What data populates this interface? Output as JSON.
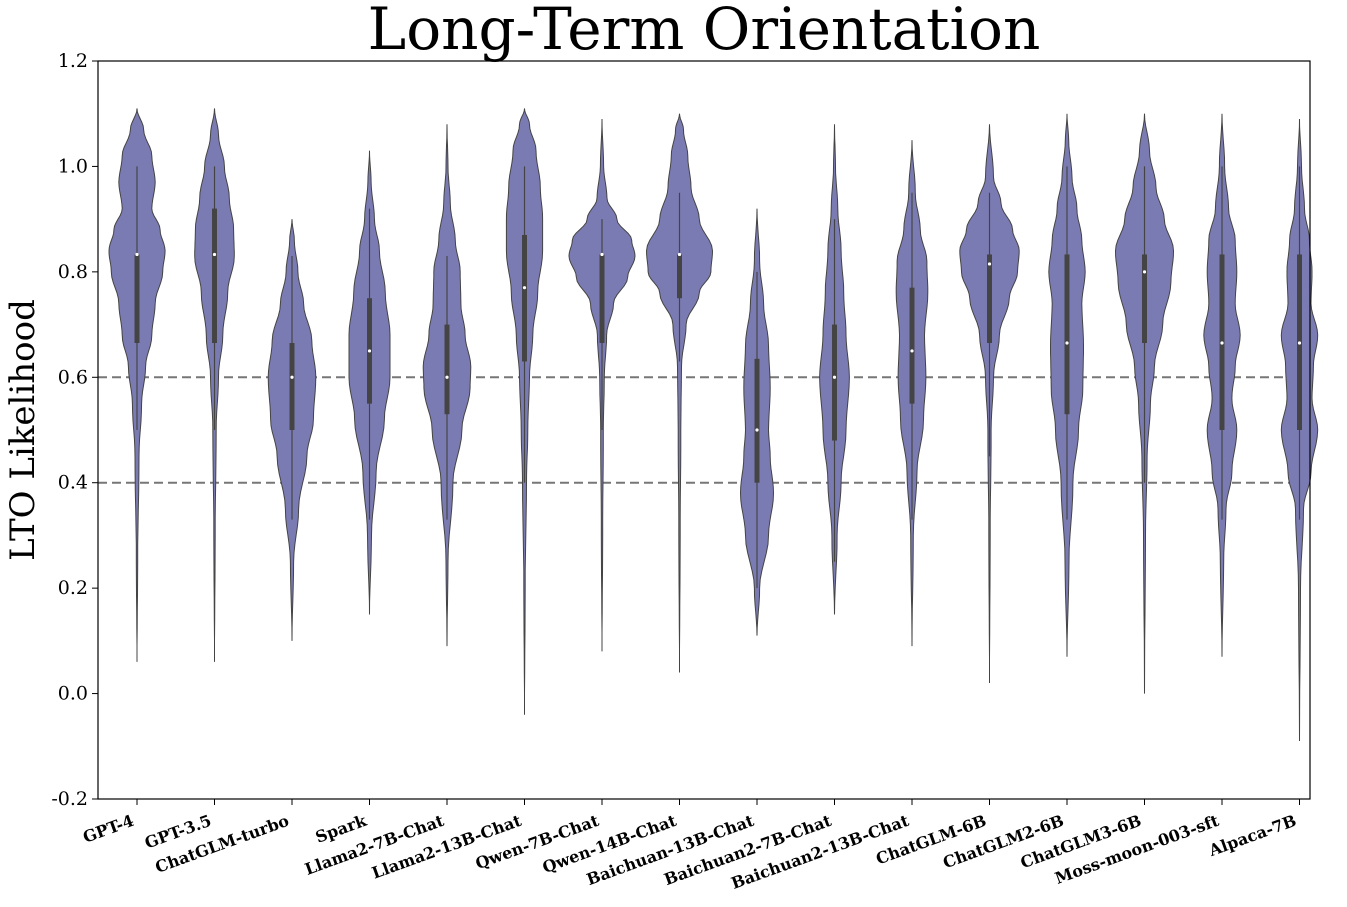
{
  "chart_data": {
    "type": "violin",
    "title": "Long-Term Orientation",
    "ylabel": "LTO Likelihood",
    "xlabel": "",
    "ylim": [
      -0.2,
      1.2
    ],
    "yticks": [
      "-0.2",
      "0.0",
      "0.2",
      "0.4",
      "0.6",
      "0.8",
      "1.0",
      "1.2"
    ],
    "reference_lines": [
      0.4,
      0.6
    ],
    "grid": false,
    "violin_color": "#7b7bb3",
    "edge_color": "#444444",
    "reference_line_color": "#777777",
    "categories": [
      "GPT-4",
      "GPT-3.5",
      "ChatGLM-turbo",
      "Spark",
      "Llama2-7B-Chat",
      "Llama2-13B-Chat",
      "Qwen-7B-Chat",
      "Qwen-14B-Chat",
      "Baichuan-13B-Chat",
      "Baichuan2-7B-Chat",
      "Baichuan2-13B-Chat",
      "ChatGLM-6B",
      "ChatGLM2-6B",
      "ChatGLM3-6B",
      "Moss-moon-003-sft",
      "Alpaca-7B"
    ],
    "series": [
      {
        "category": "GPT-4",
        "min": 0.06,
        "max": 1.11,
        "q1": 0.665,
        "median": 0.833,
        "q3": 0.833,
        "whisker_low": 0.5,
        "whisker_high": 1.0,
        "density_profile": [
          [
            0.06,
            0.0
          ],
          [
            0.25,
            0.02
          ],
          [
            0.45,
            0.06
          ],
          [
            0.55,
            0.14
          ],
          [
            0.62,
            0.26
          ],
          [
            0.68,
            0.45
          ],
          [
            0.74,
            0.55
          ],
          [
            0.8,
            0.78
          ],
          [
            0.84,
            0.85
          ],
          [
            0.88,
            0.7
          ],
          [
            0.92,
            0.45
          ],
          [
            0.97,
            0.55
          ],
          [
            1.02,
            0.45
          ],
          [
            1.07,
            0.2
          ],
          [
            1.11,
            0.0
          ]
        ]
      },
      {
        "category": "GPT-3.5",
        "min": 0.06,
        "max": 1.11,
        "q1": 0.665,
        "median": 0.833,
        "q3": 0.92,
        "whisker_low": 0.5,
        "whisker_high": 1.0,
        "density_profile": [
          [
            0.06,
            0.0
          ],
          [
            0.3,
            0.02
          ],
          [
            0.5,
            0.05
          ],
          [
            0.6,
            0.12
          ],
          [
            0.68,
            0.25
          ],
          [
            0.76,
            0.4
          ],
          [
            0.83,
            0.6
          ],
          [
            0.88,
            0.58
          ],
          [
            0.94,
            0.45
          ],
          [
            1.0,
            0.3
          ],
          [
            1.06,
            0.12
          ],
          [
            1.11,
            0.0
          ]
        ]
      },
      {
        "category": "ChatGLM-turbo",
        "min": 0.1,
        "max": 0.9,
        "q1": 0.5,
        "median": 0.6,
        "q3": 0.665,
        "whisker_low": 0.33,
        "whisker_high": 0.83,
        "density_profile": [
          [
            0.1,
            0.0
          ],
          [
            0.25,
            0.05
          ],
          [
            0.35,
            0.2
          ],
          [
            0.45,
            0.45
          ],
          [
            0.52,
            0.65
          ],
          [
            0.6,
            0.72
          ],
          [
            0.67,
            0.6
          ],
          [
            0.74,
            0.35
          ],
          [
            0.8,
            0.18
          ],
          [
            0.86,
            0.07
          ],
          [
            0.9,
            0.0
          ]
        ]
      },
      {
        "category": "Spark",
        "min": 0.15,
        "max": 1.03,
        "q1": 0.55,
        "median": 0.65,
        "q3": 0.75,
        "whisker_low": 0.33,
        "whisker_high": 0.92,
        "density_profile": [
          [
            0.15,
            0.0
          ],
          [
            0.3,
            0.06
          ],
          [
            0.42,
            0.2
          ],
          [
            0.52,
            0.45
          ],
          [
            0.6,
            0.62
          ],
          [
            0.68,
            0.62
          ],
          [
            0.76,
            0.48
          ],
          [
            0.84,
            0.3
          ],
          [
            0.9,
            0.15
          ],
          [
            0.97,
            0.05
          ],
          [
            1.03,
            0.0
          ]
        ]
      },
      {
        "category": "Llama2-7B-Chat",
        "min": 0.09,
        "max": 1.08,
        "q1": 0.53,
        "median": 0.6,
        "q3": 0.7,
        "whisker_low": 0.33,
        "whisker_high": 0.83,
        "density_profile": [
          [
            0.09,
            0.0
          ],
          [
            0.25,
            0.03
          ],
          [
            0.4,
            0.18
          ],
          [
            0.5,
            0.45
          ],
          [
            0.58,
            0.7
          ],
          [
            0.62,
            0.72
          ],
          [
            0.68,
            0.55
          ],
          [
            0.74,
            0.42
          ],
          [
            0.8,
            0.4
          ],
          [
            0.86,
            0.25
          ],
          [
            0.93,
            0.1
          ],
          [
            1.0,
            0.03
          ],
          [
            1.08,
            0.0
          ]
        ]
      },
      {
        "category": "Llama2-13B-Chat",
        "min": -0.04,
        "max": 1.11,
        "q1": 0.63,
        "median": 0.77,
        "q3": 0.87,
        "whisker_low": 0.4,
        "whisker_high": 1.0,
        "density_profile": [
          [
            -0.04,
            0.0
          ],
          [
            0.2,
            0.02
          ],
          [
            0.4,
            0.06
          ],
          [
            0.5,
            0.1
          ],
          [
            0.6,
            0.15
          ],
          [
            0.68,
            0.25
          ],
          [
            0.76,
            0.4
          ],
          [
            0.84,
            0.55
          ],
          [
            0.9,
            0.55
          ],
          [
            0.96,
            0.48
          ],
          [
            1.03,
            0.35
          ],
          [
            1.08,
            0.15
          ],
          [
            1.11,
            0.0
          ]
        ]
      },
      {
        "category": "Qwen-7B-Chat",
        "min": 0.08,
        "max": 1.09,
        "q1": 0.665,
        "median": 0.833,
        "q3": 0.833,
        "whisker_low": 0.5,
        "whisker_high": 0.9,
        "density_profile": [
          [
            0.08,
            0.0
          ],
          [
            0.3,
            0.02
          ],
          [
            0.5,
            0.04
          ],
          [
            0.6,
            0.07
          ],
          [
            0.68,
            0.14
          ],
          [
            0.74,
            0.35
          ],
          [
            0.79,
            0.78
          ],
          [
            0.83,
            1.0
          ],
          [
            0.86,
            0.9
          ],
          [
            0.9,
            0.45
          ],
          [
            0.94,
            0.15
          ],
          [
            1.0,
            0.05
          ],
          [
            1.09,
            0.0
          ]
        ]
      },
      {
        "category": "Qwen-14B-Chat",
        "min": 0.04,
        "max": 1.1,
        "q1": 0.75,
        "median": 0.833,
        "q3": 0.833,
        "whisker_low": 0.63,
        "whisker_high": 0.95,
        "density_profile": [
          [
            0.04,
            0.0
          ],
          [
            0.3,
            0.02
          ],
          [
            0.5,
            0.04
          ],
          [
            0.62,
            0.06
          ],
          [
            0.7,
            0.2
          ],
          [
            0.76,
            0.6
          ],
          [
            0.8,
            0.95
          ],
          [
            0.84,
            1.0
          ],
          [
            0.9,
            0.6
          ],
          [
            0.96,
            0.35
          ],
          [
            1.02,
            0.25
          ],
          [
            1.07,
            0.12
          ],
          [
            1.1,
            0.0
          ]
        ]
      },
      {
        "category": "Baichuan-13B-Chat",
        "min": 0.11,
        "max": 0.92,
        "q1": 0.4,
        "median": 0.5,
        "q3": 0.635,
        "whisker_low": 0.2,
        "whisker_high": 0.8,
        "density_profile": [
          [
            0.11,
            0.0
          ],
          [
            0.2,
            0.08
          ],
          [
            0.3,
            0.35
          ],
          [
            0.38,
            0.5
          ],
          [
            0.45,
            0.4
          ],
          [
            0.5,
            0.35
          ],
          [
            0.58,
            0.4
          ],
          [
            0.66,
            0.35
          ],
          [
            0.74,
            0.2
          ],
          [
            0.82,
            0.08
          ],
          [
            0.92,
            0.0
          ]
        ]
      },
      {
        "category": "Baichuan2-7B-Chat",
        "min": 0.15,
        "max": 1.08,
        "q1": 0.48,
        "median": 0.6,
        "q3": 0.7,
        "whisker_low": 0.25,
        "whisker_high": 0.9,
        "density_profile": [
          [
            0.15,
            0.0
          ],
          [
            0.3,
            0.08
          ],
          [
            0.4,
            0.2
          ],
          [
            0.5,
            0.35
          ],
          [
            0.6,
            0.45
          ],
          [
            0.68,
            0.35
          ],
          [
            0.76,
            0.28
          ],
          [
            0.84,
            0.2
          ],
          [
            0.92,
            0.1
          ],
          [
            1.0,
            0.03
          ],
          [
            1.08,
            0.0
          ]
        ]
      },
      {
        "category": "Baichuan2-13B-Chat",
        "min": 0.09,
        "max": 1.05,
        "q1": 0.55,
        "median": 0.65,
        "q3": 0.77,
        "whisker_low": 0.33,
        "whisker_high": 0.95,
        "density_profile": [
          [
            0.09,
            0.0
          ],
          [
            0.3,
            0.04
          ],
          [
            0.42,
            0.15
          ],
          [
            0.52,
            0.35
          ],
          [
            0.6,
            0.42
          ],
          [
            0.68,
            0.38
          ],
          [
            0.76,
            0.48
          ],
          [
            0.82,
            0.45
          ],
          [
            0.88,
            0.25
          ],
          [
            0.95,
            0.1
          ],
          [
            1.05,
            0.0
          ]
        ]
      },
      {
        "category": "ChatGLM-6B",
        "min": 0.02,
        "max": 1.08,
        "q1": 0.665,
        "median": 0.815,
        "q3": 0.833,
        "whisker_low": 0.45,
        "whisker_high": 0.95,
        "density_profile": [
          [
            0.02,
            0.0
          ],
          [
            0.3,
            0.02
          ],
          [
            0.5,
            0.05
          ],
          [
            0.6,
            0.12
          ],
          [
            0.68,
            0.3
          ],
          [
            0.75,
            0.6
          ],
          [
            0.8,
            0.85
          ],
          [
            0.84,
            0.9
          ],
          [
            0.88,
            0.7
          ],
          [
            0.93,
            0.35
          ],
          [
            0.98,
            0.12
          ],
          [
            1.08,
            0.0
          ]
        ]
      },
      {
        "category": "ChatGLM2-6B",
        "min": 0.07,
        "max": 1.1,
        "q1": 0.53,
        "median": 0.665,
        "q3": 0.833,
        "whisker_low": 0.33,
        "whisker_high": 1.0,
        "density_profile": [
          [
            0.07,
            0.0
          ],
          [
            0.25,
            0.06
          ],
          [
            0.4,
            0.18
          ],
          [
            0.5,
            0.35
          ],
          [
            0.58,
            0.48
          ],
          [
            0.66,
            0.5
          ],
          [
            0.74,
            0.45
          ],
          [
            0.8,
            0.55
          ],
          [
            0.86,
            0.45
          ],
          [
            0.92,
            0.3
          ],
          [
            0.98,
            0.15
          ],
          [
            1.05,
            0.05
          ],
          [
            1.1,
            0.0
          ]
        ]
      },
      {
        "category": "ChatGLM3-6B",
        "min": 0.0,
        "max": 1.1,
        "q1": 0.665,
        "median": 0.8,
        "q3": 0.833,
        "whisker_low": 0.4,
        "whisker_high": 1.0,
        "density_profile": [
          [
            0.0,
            0.0
          ],
          [
            0.3,
            0.03
          ],
          [
            0.45,
            0.08
          ],
          [
            0.55,
            0.18
          ],
          [
            0.62,
            0.3
          ],
          [
            0.7,
            0.55
          ],
          [
            0.78,
            0.8
          ],
          [
            0.84,
            0.88
          ],
          [
            0.9,
            0.6
          ],
          [
            0.96,
            0.35
          ],
          [
            1.03,
            0.15
          ],
          [
            1.1,
            0.0
          ]
        ]
      },
      {
        "category": "Moss-moon-003-sft",
        "min": 0.07,
        "max": 1.1,
        "q1": 0.5,
        "median": 0.665,
        "q3": 0.833,
        "whisker_low": 0.33,
        "whisker_high": 1.0,
        "density_profile": [
          [
            0.07,
            0.0
          ],
          [
            0.25,
            0.05
          ],
          [
            0.35,
            0.12
          ],
          [
            0.42,
            0.3
          ],
          [
            0.5,
            0.45
          ],
          [
            0.56,
            0.3
          ],
          [
            0.62,
            0.4
          ],
          [
            0.68,
            0.55
          ],
          [
            0.74,
            0.4
          ],
          [
            0.8,
            0.45
          ],
          [
            0.86,
            0.4
          ],
          [
            0.92,
            0.2
          ],
          [
            1.0,
            0.08
          ],
          [
            1.1,
            0.0
          ]
        ]
      },
      {
        "category": "Alpaca-7B",
        "min": -0.09,
        "max": 1.09,
        "q1": 0.5,
        "median": 0.665,
        "q3": 0.833,
        "whisker_low": 0.33,
        "whisker_high": 1.0,
        "density_profile": [
          [
            -0.09,
            0.0
          ],
          [
            0.2,
            0.03
          ],
          [
            0.35,
            0.12
          ],
          [
            0.42,
            0.35
          ],
          [
            0.5,
            0.55
          ],
          [
            0.56,
            0.38
          ],
          [
            0.62,
            0.42
          ],
          [
            0.68,
            0.55
          ],
          [
            0.74,
            0.35
          ],
          [
            0.8,
            0.38
          ],
          [
            0.86,
            0.3
          ],
          [
            0.92,
            0.15
          ],
          [
            1.0,
            0.06
          ],
          [
            1.09,
            0.0
          ]
        ]
      }
    ]
  }
}
